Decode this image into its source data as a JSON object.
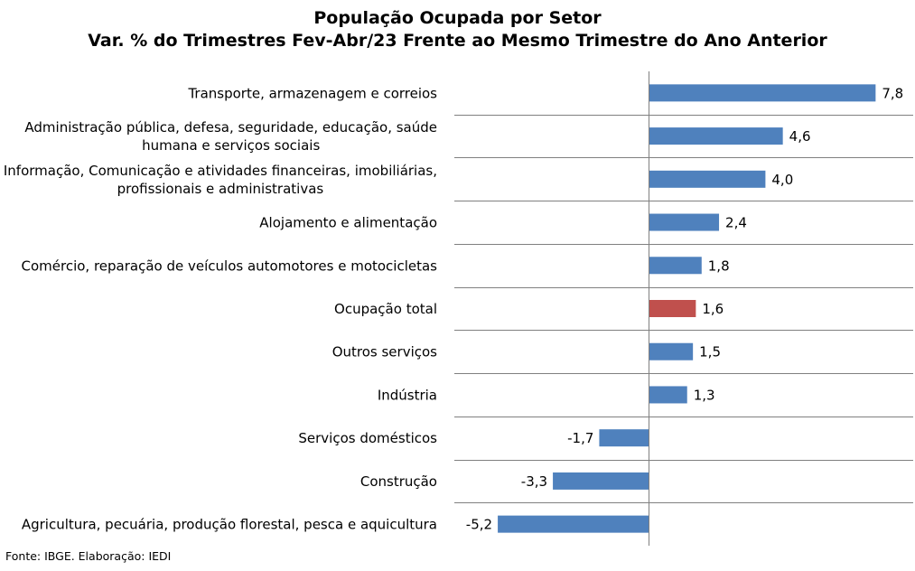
{
  "chart_data": {
    "type": "bar",
    "orientation": "horizontal",
    "title": "População Ocupada por Setor",
    "subtitle": "Var. % do Trimestres Fev-Abr/23 Frente ao Mesmo Trimestre do Ano Anterior",
    "categories": [
      [
        "Transporte, armazenagem e correios"
      ],
      [
        "Administração pública, defesa, seguridade, educação, saúde",
        "humana e serviços sociais"
      ],
      [
        "Informação, Comunicação e atividades financeiras, imobiliárias,",
        "profissionais e administrativas"
      ],
      [
        "Alojamento e alimentação"
      ],
      [
        "Comércio, reparação de veículos automotores e motocicletas"
      ],
      [
        "Ocupação total"
      ],
      [
        "Outros serviços"
      ],
      [
        "Indústria"
      ],
      [
        "Serviços domésticos"
      ],
      [
        "Construção"
      ],
      [
        "Agricultura, pecuária, produção florestal, pesca e aquicultura"
      ]
    ],
    "values": [
      7.8,
      4.6,
      4.0,
      2.4,
      1.8,
      1.6,
      1.5,
      1.3,
      -1.7,
      -3.3,
      -5.2
    ],
    "value_labels": [
      "7,8",
      "4,6",
      "4,0",
      "2,4",
      "1,8",
      "1,6",
      "1,5",
      "1,3",
      "-1,7",
      "-3,3",
      "-5,2"
    ],
    "highlight_index": 5,
    "colors": {
      "bar": "#4f81bd",
      "highlight": "#c0504d",
      "gridline": "#808080"
    },
    "grid": true,
    "legend": false
  },
  "source": "Fonte: IBGE. Elaboração: IEDI"
}
